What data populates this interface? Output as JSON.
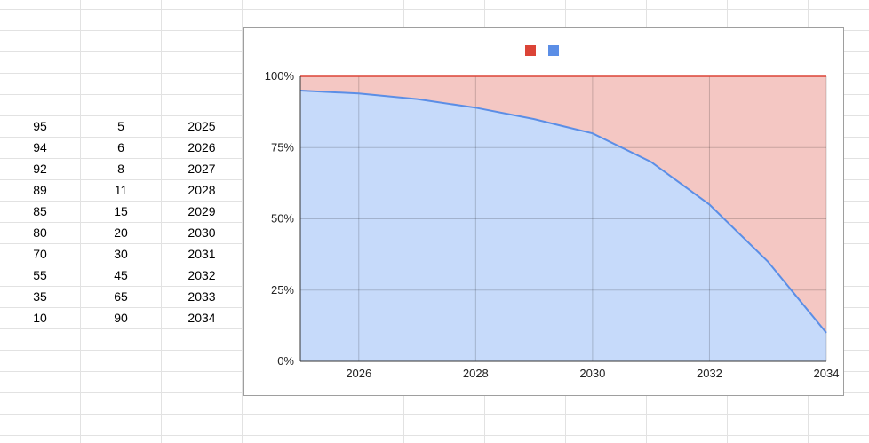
{
  "sheet": {
    "rows": [
      [
        "95",
        "5",
        "2025"
      ],
      [
        "94",
        "6",
        "2026"
      ],
      [
        "92",
        "8",
        "2027"
      ],
      [
        "89",
        "11",
        "2028"
      ],
      [
        "85",
        "15",
        "2029"
      ],
      [
        "80",
        "20",
        "2030"
      ],
      [
        "70",
        "30",
        "2031"
      ],
      [
        "55",
        "45",
        "2032"
      ],
      [
        "35",
        "65",
        "2033"
      ],
      [
        "10",
        "90",
        "2034"
      ]
    ]
  },
  "chart_data": {
    "type": "area",
    "stacked": "percent",
    "x": [
      2025,
      2026,
      2027,
      2028,
      2029,
      2030,
      2031,
      2032,
      2033,
      2034
    ],
    "series": [
      {
        "values": [
          95,
          94,
          92,
          89,
          85,
          80,
          70,
          55,
          35,
          10
        ],
        "color": "#5b8ee6",
        "fill": "#c6dafa"
      },
      {
        "values": [
          5,
          6,
          8,
          11,
          15,
          20,
          30,
          45,
          65,
          90
        ],
        "color": "#db4437",
        "fill": "#f4c7c3"
      }
    ],
    "legend_colors": [
      "#db4437",
      "#5b8ee6"
    ],
    "legend_position": "top",
    "xticks": [
      "2026",
      "2028",
      "2030",
      "2032",
      "2034"
    ],
    "yticks": [
      "0%",
      "25%",
      "50%",
      "75%",
      "100%"
    ],
    "xlim": [
      2025,
      2034
    ],
    "ylim": [
      0,
      100
    ],
    "grid": true
  }
}
